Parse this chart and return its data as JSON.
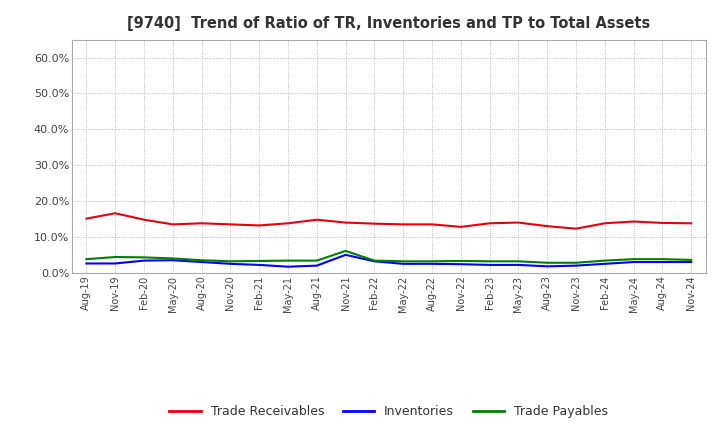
{
  "title": "[9740]  Trend of Ratio of TR, Inventories and TP to Total Assets",
  "x_labels": [
    "Aug-19",
    "Nov-19",
    "Feb-20",
    "May-20",
    "Aug-20",
    "Nov-20",
    "Feb-21",
    "May-21",
    "Aug-21",
    "Nov-21",
    "Feb-22",
    "May-22",
    "Aug-22",
    "Nov-22",
    "Feb-23",
    "May-23",
    "Aug-23",
    "Nov-23",
    "Feb-24",
    "May-24",
    "Aug-24",
    "Nov-24"
  ],
  "trade_receivables": [
    0.151,
    0.166,
    0.148,
    0.135,
    0.138,
    0.135,
    0.132,
    0.138,
    0.148,
    0.14,
    0.137,
    0.135,
    0.135,
    0.128,
    0.138,
    0.14,
    0.13,
    0.123,
    0.138,
    0.143,
    0.139,
    0.138
  ],
  "inventories": [
    0.026,
    0.026,
    0.034,
    0.035,
    0.03,
    0.025,
    0.022,
    0.017,
    0.02,
    0.05,
    0.032,
    0.025,
    0.025,
    0.024,
    0.022,
    0.022,
    0.018,
    0.02,
    0.025,
    0.03,
    0.03,
    0.03
  ],
  "trade_payables": [
    0.038,
    0.044,
    0.043,
    0.04,
    0.035,
    0.032,
    0.033,
    0.034,
    0.034,
    0.061,
    0.034,
    0.032,
    0.032,
    0.033,
    0.032,
    0.032,
    0.028,
    0.028,
    0.034,
    0.038,
    0.038,
    0.036
  ],
  "tr_color": "#e8000d",
  "inv_color": "#0000ff",
  "tp_color": "#008000",
  "ylim": [
    0.0,
    0.65
  ],
  "yticks": [
    0.0,
    0.1,
    0.2,
    0.3,
    0.4,
    0.5,
    0.6
  ],
  "ytick_labels": [
    "0.0%",
    "10.0%",
    "20.0%",
    "30.0%",
    "40.0%",
    "50.0%",
    "60.0%"
  ],
  "bg_color": "#ffffff",
  "grid_color": "#aaaaaa",
  "legend_labels": [
    "Trade Receivables",
    "Inventories",
    "Trade Payables"
  ]
}
